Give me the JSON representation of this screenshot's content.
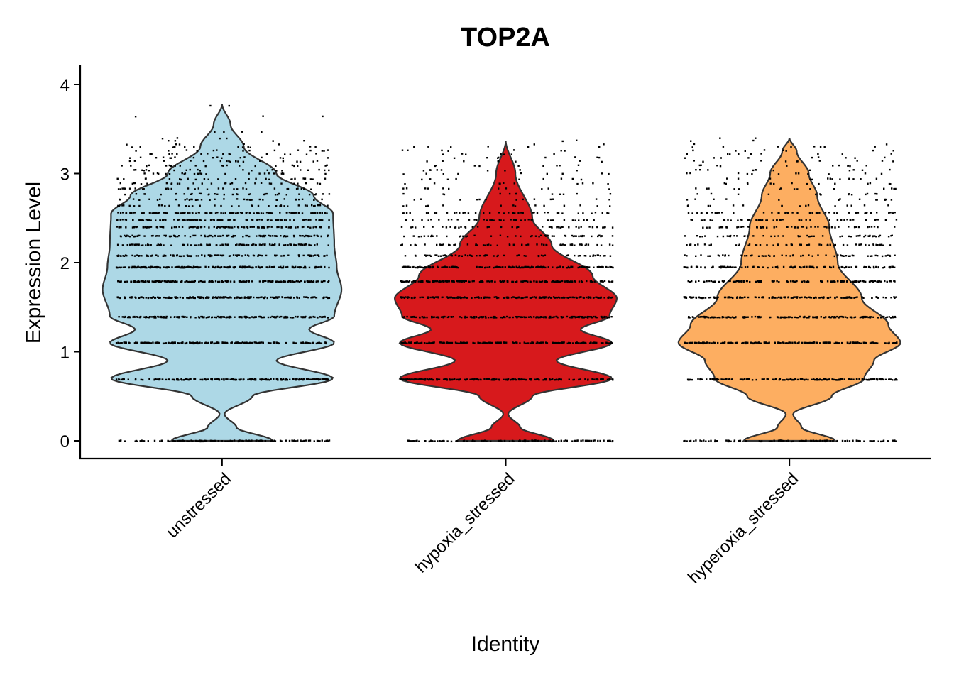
{
  "chart_data": {
    "type": "violin",
    "title": "TOP2A",
    "xlabel": "Identity",
    "ylabel": "Expression Level",
    "ylim": [
      -0.2,
      4.2
    ],
    "y_ticks": [
      "0",
      "1",
      "2",
      "3",
      "4"
    ],
    "y_tick_values": [
      0,
      1,
      2,
      3,
      4
    ],
    "categories": [
      "unstressed",
      "hypoxia_stressed",
      "hyperoxia_stressed"
    ],
    "legend": "none",
    "grid": false,
    "points_shown": true,
    "series": [
      {
        "category": "unstressed",
        "color": "#ADD8E6",
        "y_range": [
          0,
          3.78
        ],
        "density_profile": [
          [
            0.0,
            0.42
          ],
          [
            0.15,
            0.12
          ],
          [
            0.3,
            0.02
          ],
          [
            0.5,
            0.25
          ],
          [
            0.7,
            0.92
          ],
          [
            0.9,
            0.45
          ],
          [
            1.1,
            0.93
          ],
          [
            1.25,
            0.72
          ],
          [
            1.4,
            0.93
          ],
          [
            1.7,
            0.99
          ],
          [
            1.95,
            0.95
          ],
          [
            2.2,
            0.93
          ],
          [
            2.55,
            0.92
          ],
          [
            2.75,
            0.76
          ],
          [
            3.0,
            0.45
          ],
          [
            3.3,
            0.18
          ],
          [
            3.55,
            0.07
          ],
          [
            3.78,
            0.0
          ]
        ]
      },
      {
        "category": "hypoxia_stressed",
        "color": "#D7191C",
        "y_range": [
          0,
          3.37
        ],
        "density_profile": [
          [
            0.0,
            0.4
          ],
          [
            0.15,
            0.12
          ],
          [
            0.3,
            0.02
          ],
          [
            0.5,
            0.22
          ],
          [
            0.7,
            0.88
          ],
          [
            0.9,
            0.42
          ],
          [
            1.1,
            0.88
          ],
          [
            1.25,
            0.62
          ],
          [
            1.4,
            0.86
          ],
          [
            1.6,
            0.92
          ],
          [
            1.85,
            0.72
          ],
          [
            2.2,
            0.38
          ],
          [
            2.5,
            0.22
          ],
          [
            3.0,
            0.08
          ],
          [
            3.37,
            0.0
          ]
        ]
      },
      {
        "category": "hyperoxia_stressed",
        "color": "#FDAE61",
        "y_range": [
          0,
          3.4
        ],
        "density_profile": [
          [
            0.0,
            0.38
          ],
          [
            0.15,
            0.1
          ],
          [
            0.3,
            0.03
          ],
          [
            0.5,
            0.35
          ],
          [
            0.7,
            0.62
          ],
          [
            0.9,
            0.7
          ],
          [
            1.1,
            0.92
          ],
          [
            1.3,
            0.82
          ],
          [
            1.6,
            0.6
          ],
          [
            2.0,
            0.4
          ],
          [
            2.4,
            0.33
          ],
          [
            2.75,
            0.23
          ],
          [
            3.0,
            0.16
          ],
          [
            3.25,
            0.06
          ],
          [
            3.4,
            0.0
          ]
        ]
      }
    ],
    "expression_levels": [
      0.0,
      0.69,
      1.1,
      1.39,
      1.61,
      1.79,
      1.95,
      2.08,
      2.2,
      2.3,
      2.4,
      2.48,
      2.56,
      2.64,
      2.71,
      2.77,
      2.83,
      2.89,
      2.94,
      3.0,
      3.04,
      3.09,
      3.14,
      3.18,
      3.22,
      3.26,
      3.3,
      3.33,
      3.37,
      3.4,
      3.47,
      3.64,
      3.76
    ]
  }
}
